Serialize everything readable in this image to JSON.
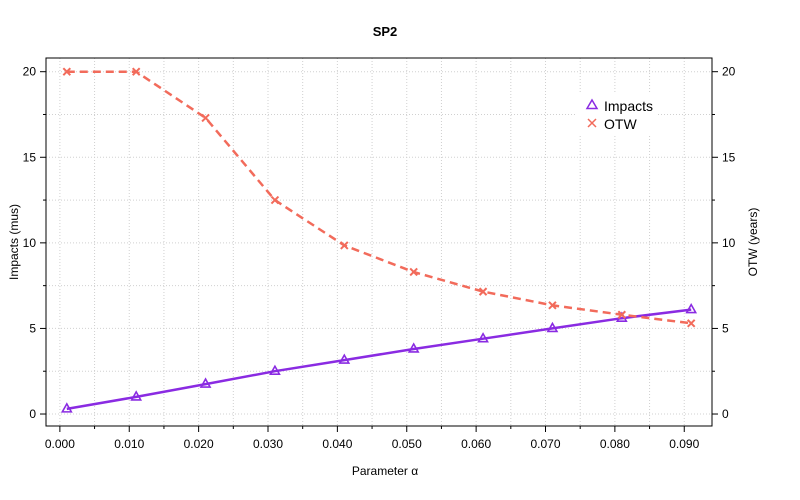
{
  "chart_data": {
    "type": "line",
    "title": "SP2",
    "xlabel": "Parameter α",
    "ylabel_left": "Impacts  (mus)",
    "ylabel_right": "OTW (years)",
    "x": [
      0.001,
      0.011,
      0.021,
      0.031,
      0.041,
      0.051,
      0.061,
      0.071,
      0.081,
      0.091
    ],
    "x_ticks": [
      "0.000",
      "0.010",
      "0.020",
      "0.030",
      "0.040",
      "0.050",
      "0.060",
      "0.070",
      "0.080",
      "0.090"
    ],
    "y_ticks_left": [
      "0",
      "5",
      "10",
      "15",
      "20"
    ],
    "y_ticks_right": [
      "0",
      "5",
      "10",
      "15",
      "20"
    ],
    "xlim": [
      -0.002,
      0.094
    ],
    "ylim": [
      -0.7,
      20.8
    ],
    "grid": true,
    "legend_position": "top-right",
    "series": [
      {
        "name": "Impacts",
        "axis": "left",
        "color": "#8A2BE2",
        "marker": "triangle-open",
        "line": "solid",
        "values": [
          0.3,
          1.0,
          1.75,
          2.5,
          3.15,
          3.8,
          4.4,
          5.0,
          5.6,
          6.1
        ]
      },
      {
        "name": "OTW",
        "axis": "right",
        "color": "#F26B5B",
        "marker": "x",
        "line": "dashed",
        "values": [
          20.0,
          20.0,
          17.3,
          12.5,
          9.85,
          8.3,
          7.15,
          6.35,
          5.8,
          5.3
        ]
      }
    ]
  }
}
